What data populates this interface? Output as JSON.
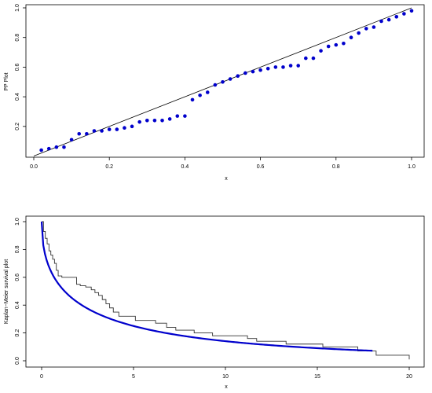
{
  "chart_data": [
    {
      "type": "scatter",
      "title": "",
      "xlabel": "x",
      "ylabel": "PP Plot",
      "xlim": [
        0.0,
        1.0
      ],
      "ylim": [
        0.0,
        1.0
      ],
      "x_ticks": [
        "0.0",
        "0.2",
        "0.4",
        "0.6",
        "0.8",
        "1.0"
      ],
      "y_ticks": [
        "0.2",
        "0.4",
        "0.6",
        "0.8",
        "1.0"
      ],
      "reference_line": {
        "from": [
          0,
          0
        ],
        "to": [
          1,
          1
        ],
        "color": "#000000"
      },
      "point_color": "#0000cc",
      "x": [
        0.02,
        0.04,
        0.06,
        0.08,
        0.1,
        0.12,
        0.14,
        0.16,
        0.18,
        0.2,
        0.22,
        0.24,
        0.26,
        0.28,
        0.3,
        0.32,
        0.34,
        0.36,
        0.38,
        0.4,
        0.42,
        0.44,
        0.46,
        0.48,
        0.5,
        0.52,
        0.54,
        0.56,
        0.58,
        0.6,
        0.62,
        0.64,
        0.66,
        0.68,
        0.7,
        0.72,
        0.74,
        0.76,
        0.78,
        0.8,
        0.82,
        0.84,
        0.86,
        0.88,
        0.9,
        0.92,
        0.94,
        0.96,
        0.98,
        1.0
      ],
      "y": [
        0.04,
        0.05,
        0.06,
        0.06,
        0.11,
        0.15,
        0.15,
        0.17,
        0.17,
        0.18,
        0.18,
        0.19,
        0.2,
        0.23,
        0.24,
        0.24,
        0.24,
        0.25,
        0.27,
        0.27,
        0.38,
        0.41,
        0.43,
        0.48,
        0.5,
        0.52,
        0.54,
        0.56,
        0.57,
        0.58,
        0.59,
        0.6,
        0.6,
        0.61,
        0.61,
        0.66,
        0.66,
        0.71,
        0.74,
        0.75,
        0.76,
        0.8,
        0.83,
        0.86,
        0.87,
        0.91,
        0.92,
        0.94,
        0.96,
        0.98
      ]
    },
    {
      "type": "line",
      "title": "",
      "xlabel": "x",
      "ylabel": "Kaplan−Meier survival plot",
      "xlim": [
        0,
        20
      ],
      "ylim": [
        0.0,
        1.0
      ],
      "x_ticks": [
        "0",
        "5",
        "10",
        "15",
        "20"
      ],
      "y_ticks": [
        "0.0",
        "0.2",
        "0.4",
        "0.6",
        "0.8",
        "1.0"
      ],
      "series": [
        {
          "style": "step",
          "color": "#333333",
          "x": [
            0,
            0.1,
            0.2,
            0.3,
            0.4,
            0.5,
            0.6,
            0.7,
            0.8,
            0.9,
            1.1,
            1.9,
            2.1,
            2.4,
            2.7,
            2.9,
            3.1,
            3.3,
            3.5,
            3.7,
            3.9,
            4.2,
            4.5,
            5.1,
            6.2,
            6.8,
            7.3,
            8.3,
            9.3,
            11.2,
            11.7,
            13.3,
            15.3,
            17.2,
            18.2,
            20.0
          ],
          "y": [
            1.0,
            0.93,
            0.88,
            0.84,
            0.79,
            0.76,
            0.73,
            0.7,
            0.65,
            0.61,
            0.6,
            0.55,
            0.54,
            0.53,
            0.51,
            0.49,
            0.47,
            0.44,
            0.41,
            0.38,
            0.35,
            0.32,
            0.32,
            0.29,
            0.27,
            0.24,
            0.22,
            0.2,
            0.18,
            0.16,
            0.14,
            0.12,
            0.1,
            0.07,
            0.04,
            0.01
          ]
        },
        {
          "style": "smooth",
          "color": "#0000cc",
          "function": "exp(-0.62*sqrt(x))",
          "x_range": [
            0,
            18
          ]
        }
      ]
    }
  ]
}
